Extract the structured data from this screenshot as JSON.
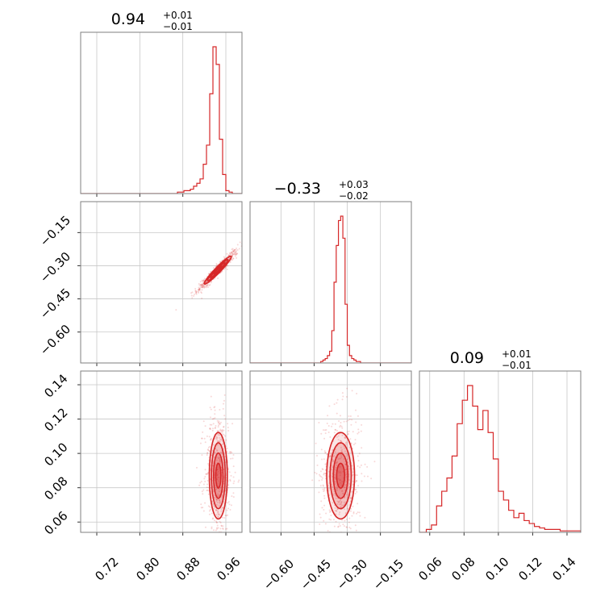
{
  "chart_data": {
    "type": "corner",
    "color": "#d62728",
    "grid": true,
    "parameters": [
      {
        "range": [
          0.69,
          0.99
        ],
        "ticks": [
          0.72,
          0.8,
          0.88,
          0.96
        ],
        "tick_labels": [
          "0.72",
          "0.80",
          "0.88",
          "0.96"
        ],
        "title": {
          "value": "0.94",
          "upper": "+0.01",
          "lower": "−0.01"
        },
        "histogram": {
          "bins": [
            0.87,
            0.876,
            0.882,
            0.888,
            0.894,
            0.9,
            0.906,
            0.912,
            0.918,
            0.924,
            0.93,
            0.936,
            0.942,
            0.948,
            0.954,
            0.96,
            0.966,
            0.972,
            0.978
          ],
          "counts": [
            0.01,
            0.01,
            0.02,
            0.02,
            0.03,
            0.05,
            0.07,
            0.1,
            0.2,
            0.33,
            0.68,
            1.0,
            0.88,
            0.37,
            0.13,
            0.02,
            0.01,
            0.0
          ]
        }
      },
      {
        "range": [
          -0.74,
          -0.01
        ],
        "ticks": [
          -0.15,
          -0.3,
          -0.45,
          -0.6
        ],
        "tick_labels": [
          "−0.15",
          "−0.30",
          "−0.45",
          "−0.60"
        ],
        "tick_labels_x": [
          "−0.60",
          "−0.45",
          "−0.30",
          "−0.15"
        ],
        "ticks_x": [
          -0.6,
          -0.45,
          -0.3,
          -0.15
        ],
        "title": {
          "value": "−0.33",
          "upper": "+0.03",
          "lower": "−0.02"
        },
        "histogram": {
          "bins": [
            -0.42,
            -0.41,
            -0.4,
            -0.39,
            -0.38,
            -0.37,
            -0.36,
            -0.35,
            -0.34,
            -0.33,
            -0.32,
            -0.31,
            -0.3,
            -0.29,
            -0.28,
            -0.27,
            -0.26,
            -0.25,
            -0.24,
            -0.23,
            -0.22
          ],
          "counts": [
            0.01,
            0.02,
            0.03,
            0.05,
            0.08,
            0.22,
            0.55,
            0.8,
            0.97,
            1.0,
            0.85,
            0.4,
            0.12,
            0.05,
            0.03,
            0.02,
            0.01,
            0.01,
            0.0,
            0.0
          ]
        }
      },
      {
        "range": [
          0.054,
          0.148
        ],
        "ticks": [
          0.06,
          0.08,
          0.1,
          0.12,
          0.14
        ],
        "tick_labels": [
          "0.06",
          "0.08",
          "0.10",
          "0.12",
          "0.14"
        ],
        "title": {
          "value": "0.09",
          "upper": "+0.01",
          "lower": "−0.01"
        },
        "histogram": {
          "bins": [
            0.058,
            0.061,
            0.064,
            0.067,
            0.07,
            0.073,
            0.076,
            0.079,
            0.082,
            0.085,
            0.088,
            0.091,
            0.094,
            0.097,
            0.1,
            0.103,
            0.106,
            0.109,
            0.112,
            0.115,
            0.118,
            0.121,
            0.124,
            0.127,
            0.13,
            0.133,
            0.136,
            0.139,
            0.142,
            0.145,
            0.148
          ],
          "counts": [
            0.02,
            0.05,
            0.18,
            0.28,
            0.37,
            0.52,
            0.74,
            0.9,
            1.0,
            0.86,
            0.7,
            0.83,
            0.68,
            0.5,
            0.28,
            0.22,
            0.15,
            0.1,
            0.13,
            0.08,
            0.06,
            0.04,
            0.03,
            0.02,
            0.02,
            0.02,
            0.01,
            0.01,
            0.01,
            0.01
          ]
        }
      }
    ],
    "correlations": [
      {
        "x_param": 0,
        "y_param": 1,
        "center": [
          0.945,
          -0.32
        ],
        "spread": [
          0.012,
          0.03
        ],
        "rho": 0.96
      },
      {
        "x_param": 0,
        "y_param": 2,
        "center": [
          0.946,
          0.087
        ],
        "spread": [
          0.008,
          0.012
        ],
        "rho": 0.0
      },
      {
        "x_param": 1,
        "y_param": 2,
        "center": [
          -0.33,
          0.087
        ],
        "spread": [
          0.03,
          0.012
        ],
        "rho": 0.0
      }
    ]
  }
}
